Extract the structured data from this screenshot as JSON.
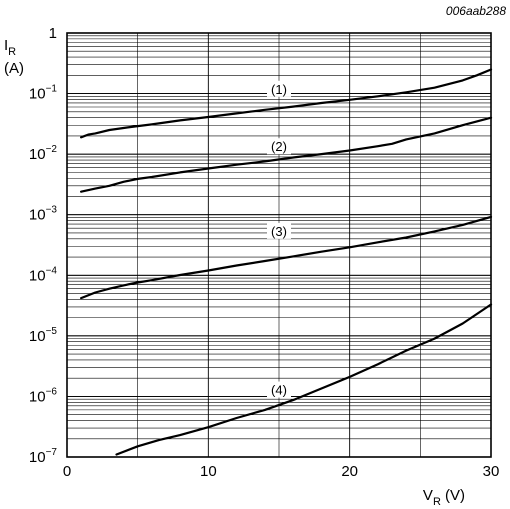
{
  "figure_ref": "006aab288",
  "chart_data": {
    "type": "line",
    "y_scale": "log",
    "xlim": [
      0,
      30
    ],
    "ylim": [
      1e-07,
      1
    ],
    "x_ticks": [
      0,
      10,
      20,
      30
    ],
    "y_ticks": [
      1e-07,
      1e-06,
      1e-05,
      0.0001,
      0.001,
      0.01,
      0.1,
      1
    ],
    "y_tick_labels": [
      {
        "base": "10",
        "exp": "−7"
      },
      {
        "base": "10",
        "exp": "−6"
      },
      {
        "base": "10",
        "exp": "−5"
      },
      {
        "base": "10",
        "exp": "−4"
      },
      {
        "base": "10",
        "exp": "−3"
      },
      {
        "base": "10",
        "exp": "−2"
      },
      {
        "base": "10",
        "exp": "−1"
      },
      {
        "base": "1",
        "exp": ""
      }
    ],
    "ylabel": {
      "symbol": "I",
      "sub": "R",
      "unit": "(A)"
    },
    "xlabel": {
      "symbol": "V",
      "sub": "R",
      "unit": " (V)"
    },
    "grid": true,
    "series": [
      {
        "label": "(1)",
        "label_at": [
          15,
          0.12
        ],
        "x": [
          1,
          1.5,
          2,
          3,
          4,
          5,
          6,
          8,
          10,
          12,
          14,
          16,
          18,
          20,
          22,
          24,
          26,
          28,
          29,
          30
        ],
        "y": [
          0.019,
          0.021,
          0.022,
          0.025,
          0.027,
          0.029,
          0.031,
          0.036,
          0.041,
          0.047,
          0.054,
          0.061,
          0.07,
          0.079,
          0.09,
          0.105,
          0.125,
          0.165,
          0.2,
          0.25
        ]
      },
      {
        "label": "(2)",
        "label_at": [
          15,
          0.0135
        ],
        "x": [
          1,
          2,
          3,
          4,
          5,
          6,
          8,
          10,
          12,
          14,
          16,
          18,
          20,
          22,
          23,
          24,
          26,
          28,
          30
        ],
        "y": [
          0.0024,
          0.0027,
          0.003,
          0.0035,
          0.0039,
          0.0042,
          0.005,
          0.0058,
          0.0067,
          0.0076,
          0.0088,
          0.01,
          0.0115,
          0.0135,
          0.0148,
          0.0175,
          0.022,
          0.03,
          0.04
        ]
      },
      {
        "label": "(3)",
        "label_at": [
          15,
          0.00054
        ],
        "x": [
          1,
          2,
          3,
          4,
          5,
          6,
          8,
          10,
          12,
          14,
          16,
          18,
          20,
          22,
          24,
          26,
          28,
          30
        ],
        "y": [
          4.2e-05,
          5.2e-05,
          6e-05,
          6.8e-05,
          7.6e-05,
          8.3e-05,
          0.000101,
          0.00012,
          0.000145,
          0.000172,
          0.000205,
          0.000245,
          0.00029,
          0.00035,
          0.00042,
          0.00053,
          0.00068,
          0.00092
        ]
      },
      {
        "label": "(4)",
        "label_at": [
          15,
          1.3e-06
        ],
        "x": [
          3.5,
          5,
          6.5,
          8,
          10,
          12,
          14,
          16,
          18,
          20,
          22,
          24,
          26,
          28,
          30
        ],
        "y": [
          1.1e-07,
          1.5e-07,
          1.9e-07,
          2.3e-07,
          3.1e-07,
          4.4e-07,
          6e-07,
          8.7e-07,
          1.35e-06,
          2.1e-06,
          3.4e-06,
          5.7e-06,
          9e-06,
          1.6e-05,
          3.3e-05
        ]
      }
    ]
  }
}
